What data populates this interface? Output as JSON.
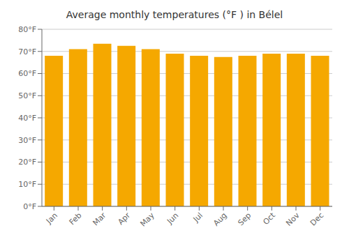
{
  "chart_data": {
    "type": "bar",
    "title": "Average monthly temperatures (°F ) in Bélel",
    "categories": [
      "Jan",
      "Feb",
      "Mar",
      "Apr",
      "May",
      "Jun",
      "Jul",
      "Aug",
      "Sep",
      "Oct",
      "Nov",
      "Dec"
    ],
    "values": [
      68,
      71,
      73.5,
      72.5,
      71,
      69,
      68,
      67.5,
      68,
      69,
      69,
      68
    ],
    "color": "#F5A800",
    "ylim": [
      0,
      80
    ],
    "yticks": [
      {
        "value": 0,
        "label": "0°F"
      },
      {
        "value": 10,
        "label": "10°F"
      },
      {
        "value": 20,
        "label": "20°F"
      },
      {
        "value": 30,
        "label": "30°F"
      },
      {
        "value": 40,
        "label": "40°F"
      },
      {
        "value": 50,
        "label": "50°F"
      },
      {
        "value": 60,
        "label": "60°F"
      },
      {
        "value": 70,
        "label": "70°F"
      },
      {
        "value": 80,
        "label": "80°F"
      }
    ],
    "grid": true
  }
}
